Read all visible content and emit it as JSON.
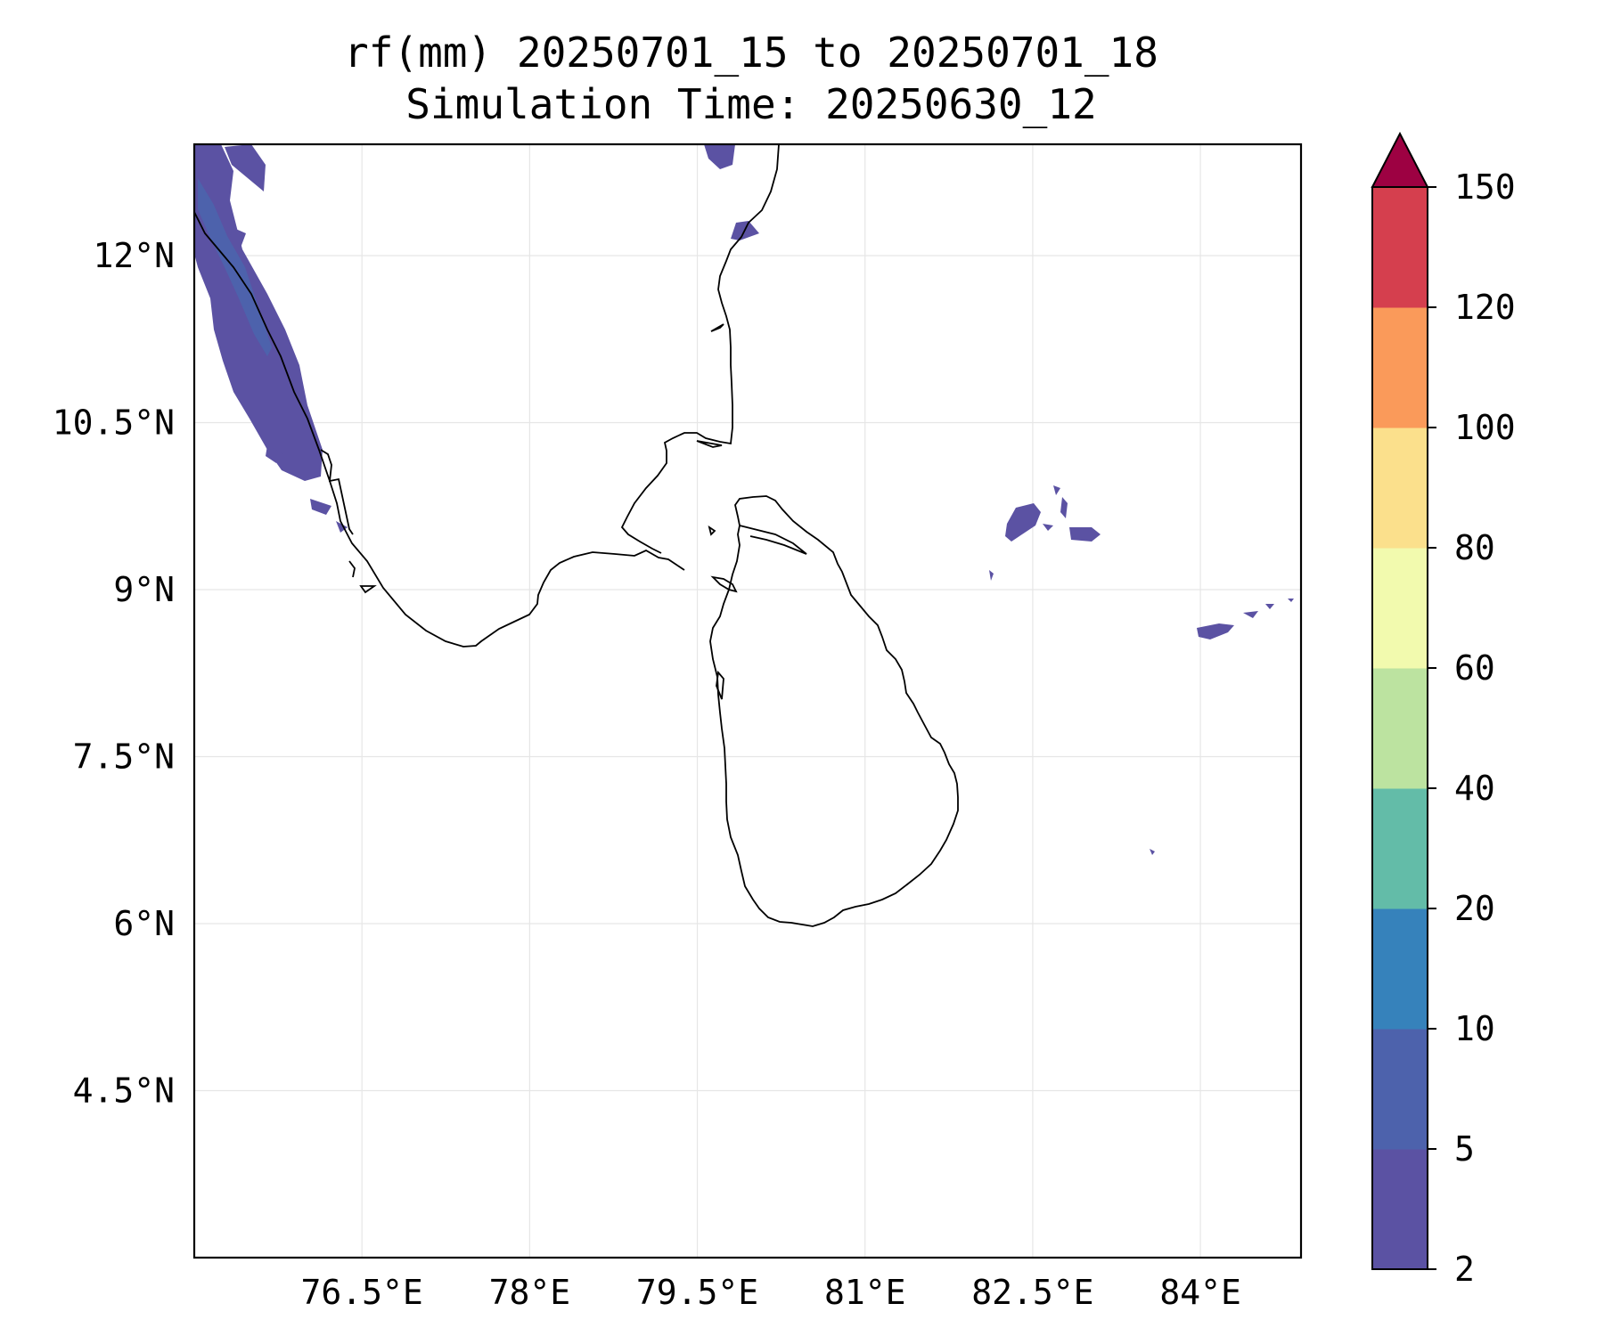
{
  "title": {
    "line1": "rf(mm) 20250701_15 to 20250701_18",
    "line2": "Simulation Time: 20250630_12"
  },
  "map": {
    "lon_range": [
      75.0,
      84.9
    ],
    "lat_range": [
      3.0,
      13.0
    ],
    "x_ticks": [
      {
        "value": 76.5,
        "label": "76.5°E"
      },
      {
        "value": 78.0,
        "label": "78°E"
      },
      {
        "value": 79.5,
        "label": "79.5°E"
      },
      {
        "value": 81.0,
        "label": "81°E"
      },
      {
        "value": 82.5,
        "label": "82.5°E"
      },
      {
        "value": 84.0,
        "label": "84°E"
      }
    ],
    "y_ticks": [
      {
        "value": 12.0,
        "label": "12°N"
      },
      {
        "value": 10.5,
        "label": "10.5°N"
      },
      {
        "value": 9.0,
        "label": "9°N"
      },
      {
        "value": 7.5,
        "label": "7.5°N"
      },
      {
        "value": 6.0,
        "label": "6°N"
      },
      {
        "value": 4.5,
        "label": "4.5°N"
      }
    ],
    "gridlines": true,
    "coastline_color": "#000000",
    "rain_color": "#5b52a3",
    "rain_color_heavy": "#4d62ac"
  },
  "colorbar": {
    "levels": [
      2,
      5,
      10,
      20,
      40,
      60,
      80,
      100,
      120,
      150
    ],
    "labels": [
      "2",
      "5",
      "10",
      "20",
      "40",
      "60",
      "80",
      "100",
      "120",
      "150"
    ],
    "colors": [
      "#5b52a3",
      "#4d62ac",
      "#3682bb",
      "#63bca8",
      "#bce3a0",
      "#f2faae",
      "#fbe08c",
      "#fa9a5a",
      "#d53f4e"
    ],
    "extend_color": "#9d0142",
    "extend": "max"
  }
}
